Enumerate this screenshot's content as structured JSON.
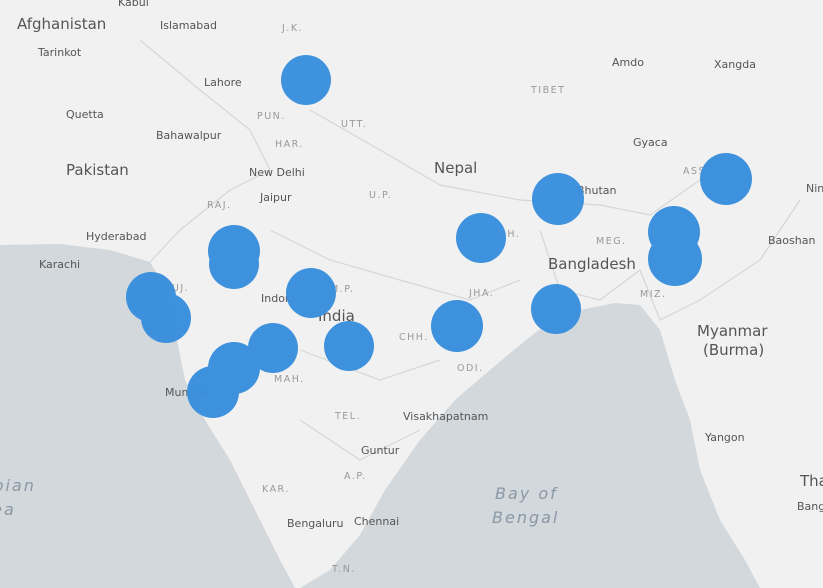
{
  "map": {
    "labels": [
      "Afghanistan",
      "Islamabad",
      "J.K.",
      "Tarinkot",
      "Lahore",
      "Quetta",
      "PUN.",
      "UTT.",
      "Bahawalpur",
      "HAR.",
      "Pakistan",
      "New Delhi",
      "Nepal",
      "TIBET",
      "Amdo",
      "Xangda",
      "Gyaca",
      "Bhutan",
      "RAJ.",
      "Jaipur",
      "U.P.",
      "Hyderabad",
      "MEG.",
      "Baoshan",
      "Karachi",
      "Bangladesh",
      "GUJ.",
      "JHA.",
      "MIZ.",
      "Indore",
      "India",
      "Myanmar",
      "(Burma)",
      "CHH.",
      "MAH.",
      "ODI.",
      "Mumbai",
      "TEL.",
      "Visakhapatnam",
      "Yangon",
      "Guntur",
      "Arabian",
      "Sea",
      "Bay of",
      "Bengal",
      "KAR.",
      "A.P.",
      "Bengaluru",
      "Chennai",
      "T.N.",
      "Tha",
      "Bang",
      "Nin",
      "Kabul",
      "ASS.",
      "BIH.",
      "M.P."
    ]
  }
}
